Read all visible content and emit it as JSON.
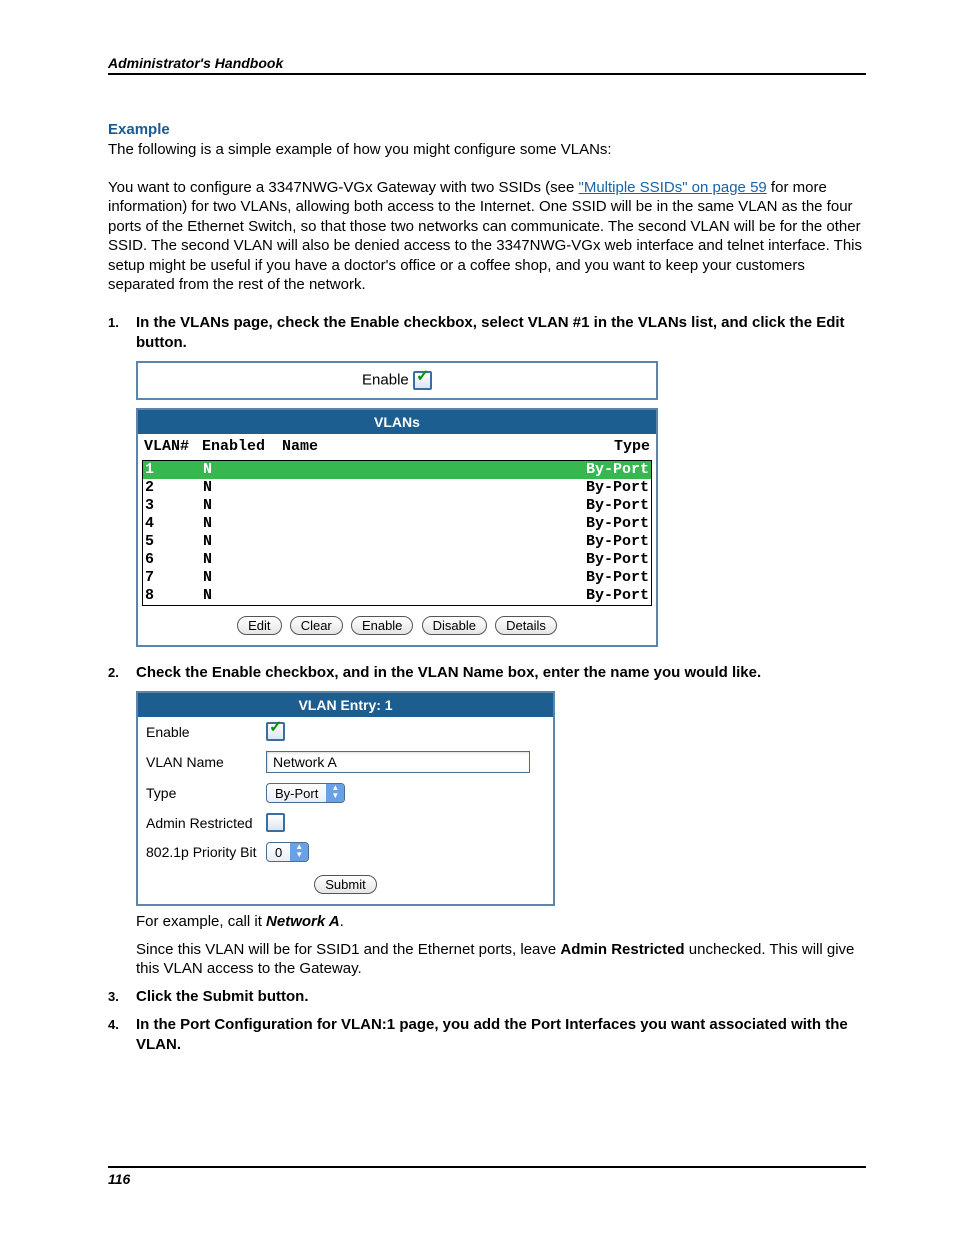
{
  "header": {
    "running": "Administrator's Handbook"
  },
  "example": {
    "title": "Example",
    "intro": "The following is a simple example of how you might configure some VLANs:",
    "body_a": "You want to configure a 3347NWG-VGx Gateway with two SSIDs (see ",
    "link": "\"Multiple SSIDs\" on page 59",
    "body_b": " for more information) for two VLANs, allowing both access to the Internet. One SSID will be in the same VLAN as the four ports of the Ethernet Switch, so that those two networks can communicate. The second VLAN will be for the other SSID. The second VLAN will also be denied access to the 3347NWG-VGx web interface and telnet interface. This setup might be useful if you have a doctor's office or a coffee shop, and you want to keep your customers separated from the rest of the network."
  },
  "steps": {
    "s1": "In the VLANs page, check the Enable checkbox, select VLAN #1 in the VLANs list, and click the Edit button.",
    "s2": "Check the Enable checkbox, and in the VLAN Name box, enter the name you would like.",
    "s2_follow_a": "For example, call it ",
    "s2_follow_net": "Network A",
    "s2_follow_b": ".",
    "s2_follow2_a": "Since this VLAN will be for SSID1 and the Ethernet ports, leave ",
    "s2_follow2_bold": "Admin Restricted",
    "s2_follow2_b": " unchecked. This will give this VLAN access to the Gateway.",
    "s3": "Click the Submit button.",
    "s4": "In the Port Configuration for VLAN:1 page, you add the Port Interfaces you want associated with the VLAN."
  },
  "shot1": {
    "enable_label": "Enable",
    "title": "VLANs",
    "cols": {
      "num": "VLAN#",
      "enabled": "Enabled",
      "name": "Name",
      "type": "Type"
    },
    "rows": [
      {
        "num": "1",
        "enabled": "N",
        "name": "",
        "type": "By-Port",
        "sel": true
      },
      {
        "num": "2",
        "enabled": "N",
        "name": "",
        "type": "By-Port",
        "sel": false
      },
      {
        "num": "3",
        "enabled": "N",
        "name": "",
        "type": "By-Port",
        "sel": false
      },
      {
        "num": "4",
        "enabled": "N",
        "name": "",
        "type": "By-Port",
        "sel": false
      },
      {
        "num": "5",
        "enabled": "N",
        "name": "",
        "type": "By-Port",
        "sel": false
      },
      {
        "num": "6",
        "enabled": "N",
        "name": "",
        "type": "By-Port",
        "sel": false
      },
      {
        "num": "7",
        "enabled": "N",
        "name": "",
        "type": "By-Port",
        "sel": false
      },
      {
        "num": "8",
        "enabled": "N",
        "name": "",
        "type": "By-Port",
        "sel": false
      }
    ],
    "buttons": {
      "edit": "Edit",
      "clear": "Clear",
      "enable": "Enable",
      "disable": "Disable",
      "details": "Details"
    }
  },
  "shot2": {
    "title": "VLAN Entry: 1",
    "fields": {
      "enable": "Enable",
      "vlan_name": "VLAN Name",
      "vlan_name_value": "Network A",
      "type": "Type",
      "type_value": "By-Port",
      "admin": "Admin Restricted",
      "priority": "802.1p Priority Bit",
      "priority_value": "0"
    },
    "submit": "Submit"
  },
  "footer": {
    "page": "116"
  },
  "colors": {
    "accent": "#1a5a90",
    "panel_border": "#5a86ad",
    "table_header_bg": "#1d5e91",
    "row_selected_bg": "#36b84e",
    "link": "#1664a5"
  }
}
